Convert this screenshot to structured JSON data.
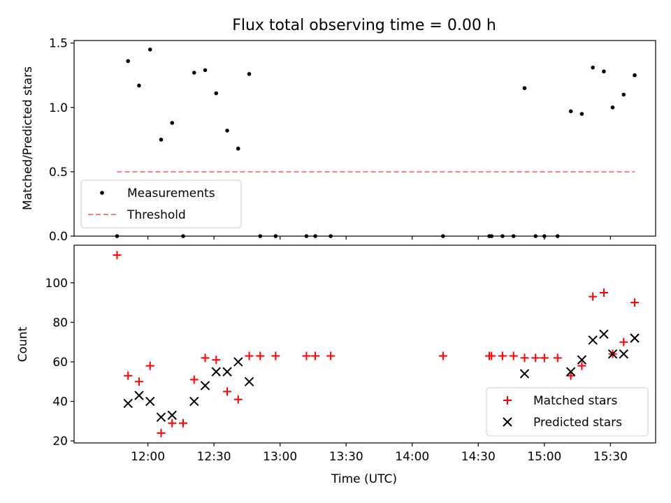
{
  "chart_data": [
    {
      "type": "scatter",
      "title": "Flux total observing time = 0.00 h",
      "ylabel": "Matched/Predicted stars",
      "ylim": [
        0,
        1.52
      ],
      "yticks": [
        "0.0",
        "0.5",
        "1.0",
        "1.5"
      ],
      "legend_placement": "lower-left",
      "series": [
        {
          "name": "Measurements",
          "marker": "dot",
          "color": "#000000",
          "x": [
            "11:46",
            "11:51",
            "11:56",
            "12:01",
            "12:06",
            "12:11",
            "12:16",
            "12:21",
            "12:26",
            "12:31",
            "12:36",
            "12:41",
            "12:46",
            "12:51",
            "12:58",
            "13:12",
            "13:16",
            "13:23",
            "14:14",
            "14:35",
            "14:36",
            "14:41",
            "14:46",
            "14:51",
            "14:56",
            "15:00",
            "15:06",
            "15:12",
            "15:17",
            "15:22",
            "15:27",
            "15:31",
            "15:36",
            "15:41"
          ],
          "y": [
            0.0,
            1.36,
            1.17,
            1.45,
            0.75,
            0.88,
            0.0,
            1.27,
            1.29,
            1.11,
            0.82,
            0.68,
            1.26,
            0.0,
            0.0,
            0.0,
            0.0,
            0.0,
            0.0,
            0.0,
            0.0,
            0.0,
            0.0,
            1.15,
            0.0,
            0.0,
            0.0,
            0.97,
            0.95,
            1.31,
            1.28,
            1.0,
            1.1,
            1.25
          ]
        },
        {
          "name": "Threshold",
          "marker": "dashed-line",
          "color": "#f08080",
          "x": [
            "11:46",
            "15:41"
          ],
          "y": [
            0.5,
            0.5
          ]
        }
      ]
    },
    {
      "type": "scatter",
      "xlabel": "Time (UTC)",
      "ylabel": "Count",
      "ylim": [
        19,
        119
      ],
      "yticks": [
        "20",
        "40",
        "60",
        "80",
        "100"
      ],
      "xticks": [
        "12:00",
        "12:30",
        "13:00",
        "13:30",
        "14:00",
        "14:30",
        "15:00",
        "15:30"
      ],
      "legend_placement": "lower-right",
      "series": [
        {
          "name": "Matched stars",
          "marker": "plus",
          "color": "#ff0000",
          "x": [
            "11:46",
            "11:51",
            "11:56",
            "12:01",
            "12:06",
            "12:11",
            "12:16",
            "12:21",
            "12:26",
            "12:31",
            "12:36",
            "12:41",
            "12:46",
            "12:51",
            "12:58",
            "13:12",
            "13:16",
            "13:23",
            "14:14",
            "14:35",
            "14:36",
            "14:41",
            "14:46",
            "14:51",
            "14:56",
            "15:00",
            "15:06",
            "15:12",
            "15:17",
            "15:22",
            "15:27",
            "15:31",
            "15:36",
            "15:41"
          ],
          "y": [
            114,
            53,
            50,
            58,
            24,
            29,
            29,
            51,
            62,
            61,
            45,
            41,
            63,
            63,
            63,
            63,
            63,
            63,
            63,
            63,
            63,
            63,
            63,
            62,
            62,
            62,
            62,
            53,
            58,
            93,
            95,
            64,
            70,
            90
          ]
        },
        {
          "name": "Predicted stars",
          "marker": "x",
          "color": "#000000",
          "x": [
            "11:51",
            "11:56",
            "12:01",
            "12:06",
            "12:11",
            "12:21",
            "12:26",
            "12:31",
            "12:36",
            "12:41",
            "12:46",
            "14:51",
            "15:12",
            "15:17",
            "15:22",
            "15:27",
            "15:31",
            "15:36",
            "15:41"
          ],
          "y": [
            39,
            43,
            40,
            32,
            33,
            40,
            48,
            55,
            55,
            60,
            50,
            54,
            55,
            61,
            71,
            74,
            64,
            64,
            72
          ]
        }
      ]
    }
  ]
}
